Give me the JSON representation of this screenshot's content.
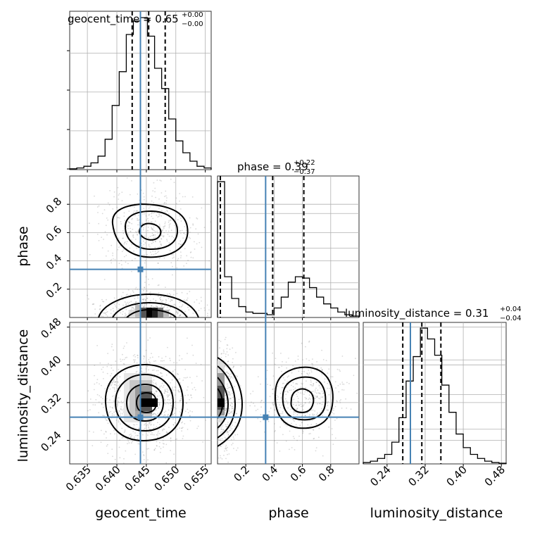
{
  "chart_data": {
    "type": "corner",
    "parameters": [
      "geocent_time",
      "phase",
      "luminosity_distance"
    ],
    "titles": [
      {
        "text": "geocent_time = 0.65",
        "up": "+0.00",
        "down": "−0.00"
      },
      {
        "text": "phase = 0.39",
        "up": "+0.22",
        "down": "−0.37"
      },
      {
        "text": "luminosity_distance = 0.31",
        "up": "+0.04",
        "down": "−0.04"
      }
    ],
    "ranges": [
      [
        0.632,
        0.656
      ],
      [
        0.0,
        1.0
      ],
      [
        0.19,
        0.49
      ]
    ],
    "truths": [
      0.644,
      0.34,
      0.289
    ],
    "truth_color": "#4682b4",
    "quantiles": [
      [
        0.6426,
        0.6454,
        0.6482
      ],
      [
        0.02,
        0.39,
        0.61
      ],
      [
        0.273,
        0.313,
        0.353
      ]
    ],
    "ticks": {
      "geocent_time": [
        "0.635",
        "0.640",
        "0.645",
        "0.650",
        "0.655"
      ],
      "phase": [
        "0.2",
        "0.4",
        "0.6",
        "0.8"
      ],
      "luminosity_distance": [
        "0.24",
        "0.32",
        "0.40",
        "0.48"
      ]
    },
    "histograms": [
      {
        "bins": 20,
        "counts": [
          0.5,
          1,
          2,
          4,
          8,
          18,
          38,
          58,
          80,
          88,
          90,
          79,
          60,
          48,
          30,
          17,
          10,
          5,
          2,
          1
        ]
      },
      {
        "bins": 20,
        "counts": [
          100,
          30,
          14,
          8,
          4,
          3,
          3,
          2,
          7,
          15,
          26,
          30,
          29,
          22,
          15,
          10,
          7,
          4,
          2,
          1
        ]
      },
      {
        "bins": 20,
        "counts": [
          1,
          2,
          4,
          7,
          16,
          34,
          61,
          79,
          100,
          92,
          80,
          58,
          38,
          22,
          12,
          7,
          4,
          2,
          1,
          0.5
        ]
      }
    ],
    "grid": true,
    "hist_color": "#000000",
    "quantile_style": "dashed"
  }
}
